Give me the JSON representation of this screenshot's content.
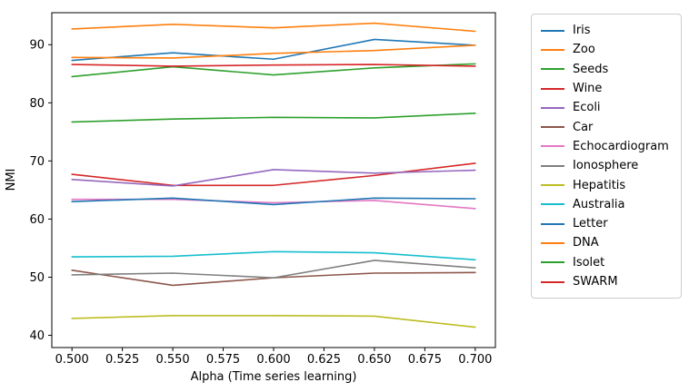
{
  "chart_data": {
    "type": "line",
    "xlabel": "Alpha (Time series learning)",
    "ylabel": "NMI",
    "title": "",
    "x": [
      0.5,
      0.55,
      0.6,
      0.65,
      0.7
    ],
    "xticks": [
      "0.500",
      "0.525",
      "0.550",
      "0.575",
      "0.600",
      "0.625",
      "0.650",
      "0.675",
      "0.700"
    ],
    "xtick_values": [
      0.5,
      0.525,
      0.55,
      0.575,
      0.6,
      0.625,
      0.65,
      0.675,
      0.7
    ],
    "yticks": [
      40,
      50,
      60,
      70,
      80,
      90
    ],
    "xlim": [
      0.49,
      0.71
    ],
    "ylim": [
      37.9,
      95.5
    ],
    "grid": false,
    "legend_position": "outside-right",
    "series": [
      {
        "name": "Iris",
        "color": "#1f77b4",
        "values": [
          87.3,
          88.6,
          87.5,
          90.9,
          89.9
        ]
      },
      {
        "name": "Zoo",
        "color": "#ff7f0e",
        "values": [
          92.7,
          93.5,
          92.9,
          93.7,
          92.3
        ]
      },
      {
        "name": "Seeds",
        "color": "#2ca02c",
        "values": [
          76.7,
          77.2,
          77.5,
          77.4,
          78.2
        ]
      },
      {
        "name": "Wine",
        "color": "#d62728",
        "values": [
          67.7,
          65.8,
          65.8,
          67.5,
          69.6
        ]
      },
      {
        "name": "Ecoli",
        "color": "#9467bd",
        "values": [
          66.8,
          65.7,
          68.5,
          67.9,
          68.4
        ]
      },
      {
        "name": "Car",
        "color": "#8c564b",
        "values": [
          51.2,
          48.6,
          49.9,
          50.7,
          50.8
        ]
      },
      {
        "name": "Echocardiogram",
        "color": "#e377c2",
        "values": [
          63.4,
          63.4,
          62.8,
          63.2,
          61.8
        ]
      },
      {
        "name": "Ionosphere",
        "color": "#7f7f7f",
        "values": [
          50.4,
          50.7,
          49.9,
          52.9,
          51.6
        ]
      },
      {
        "name": "Hepatitis",
        "color": "#bcbd22",
        "values": [
          42.9,
          43.4,
          43.4,
          43.3,
          41.4
        ]
      },
      {
        "name": "Australia",
        "color": "#17becf",
        "values": [
          53.5,
          53.6,
          54.4,
          54.2,
          53.0
        ]
      },
      {
        "name": "Letter",
        "color": "#1f77b4",
        "values": [
          63.0,
          63.6,
          62.5,
          63.6,
          63.5
        ]
      },
      {
        "name": "DNA",
        "color": "#ff7f0e",
        "values": [
          87.8,
          87.7,
          88.5,
          89.0,
          89.9
        ]
      },
      {
        "name": "Isolet",
        "color": "#2ca02c",
        "values": [
          84.5,
          86.2,
          84.8,
          86.0,
          86.7
        ]
      },
      {
        "name": "SWARM",
        "color": "#d62728",
        "values": [
          86.6,
          86.3,
          86.5,
          86.6,
          86.3
        ]
      }
    ],
    "axis_color": "#000000",
    "background_color": "#ffffff"
  }
}
